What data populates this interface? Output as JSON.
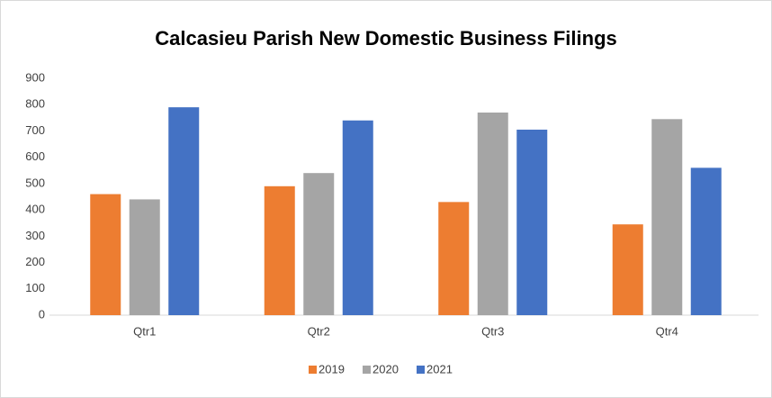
{
  "chart_data": {
    "type": "bar",
    "title": "Calcasieu Parish New Domestic Business Filings",
    "categories": [
      "Qtr1",
      "Qtr2",
      "Qtr3",
      "Qtr4"
    ],
    "series": [
      {
        "name": "2019",
        "color": "#ed7d31",
        "values": [
          460,
          490,
          430,
          345
        ]
      },
      {
        "name": "2020",
        "color": "#a5a5a5",
        "values": [
          440,
          540,
          770,
          745
        ]
      },
      {
        "name": "2021",
        "color": "#4472c4",
        "values": [
          790,
          740,
          705,
          560
        ]
      }
    ],
    "ylim": [
      0,
      900
    ],
    "yticks": [
      0,
      100,
      200,
      300,
      400,
      500,
      600,
      700,
      800,
      900
    ],
    "grid": false,
    "legend": "bottom"
  }
}
